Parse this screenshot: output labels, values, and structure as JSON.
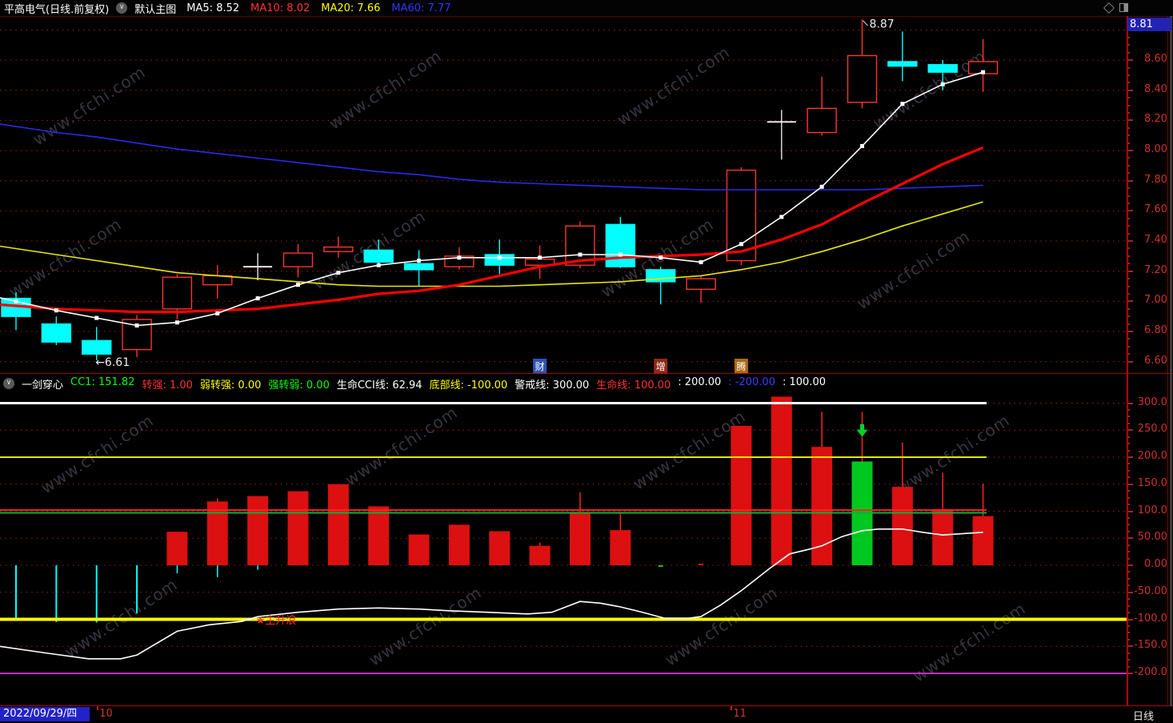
{
  "header": {
    "stock_title": "平高电气(日线.前复权)",
    "chart_style_label": "默认主图",
    "ma_legend": [
      {
        "label": "MA5: 8.52",
        "color": "#ffffff"
      },
      {
        "label": "MA10: 8.02",
        "color": "#ff3232"
      },
      {
        "label": "MA20: 7.66",
        "color": "#ffff00"
      },
      {
        "label": "MA60: 7.77",
        "color": "#3434ff"
      }
    ]
  },
  "price_box": {
    "value": "8.81",
    "bg": "#2222b4"
  },
  "main_axis": {
    "labels": [
      {
        "text": "8.80",
        "p": 8.8
      },
      {
        "text": "8.60",
        "p": 8.6
      },
      {
        "text": "8.40",
        "p": 8.4
      },
      {
        "text": "8.20",
        "p": 8.2
      },
      {
        "text": "8.00",
        "p": 8.0
      },
      {
        "text": "7.80",
        "p": 7.8
      },
      {
        "text": "7.60",
        "p": 7.6
      },
      {
        "text": "7.40",
        "p": 7.4
      },
      {
        "text": "7.20",
        "p": 7.2
      },
      {
        "text": "7.00",
        "p": 7.0
      },
      {
        "text": "6.80",
        "p": 6.8
      },
      {
        "text": "6.60",
        "p": 6.6
      }
    ]
  },
  "sub_axis": {
    "labels": [
      {
        "text": "300.0",
        "v": 300
      },
      {
        "text": "250.0",
        "v": 250
      },
      {
        "text": "200.0",
        "v": 200
      },
      {
        "text": "150.0",
        "v": 150
      },
      {
        "text": "100.0",
        "v": 100
      },
      {
        "text": "50.00",
        "v": 50
      },
      {
        "text": "0.00",
        "v": 0
      },
      {
        "text": "-50.00",
        "v": -50
      },
      {
        "text": "-100.0",
        "v": -100
      },
      {
        "text": "-150.0",
        "v": -150
      },
      {
        "text": "-200.0",
        "v": -200
      }
    ],
    "period_label": "日线"
  },
  "sub_legend": {
    "name": "一剑穿心",
    "items": [
      {
        "text": "CC1: 151.82",
        "color": "#00ff00"
      },
      {
        "text": "转强: 1.00",
        "color": "#ff3232"
      },
      {
        "text": "弱转强: 0.00",
        "color": "#ffff00"
      },
      {
        "text": "强转弱: 0.00",
        "color": "#00ff00"
      },
      {
        "text": "生命CCI线: 62.94",
        "color": "#ffffff"
      },
      {
        "text": "底部线: -100.00",
        "color": "#ffff00"
      },
      {
        "text": "警戒线: 300.00",
        "color": "#ffffff"
      },
      {
        "text": "生命线: 100.00",
        "color": "#ff3232"
      },
      {
        "text": ": 200.00",
        "color": "#ffffff"
      },
      {
        "text": ": -200.00",
        "color": "#3c3cff"
      },
      {
        "text": ": 100.00",
        "color": "#ffffff"
      }
    ]
  },
  "bottom_bar": {
    "date": "2022/09/29/四",
    "months": [
      {
        "text": "10",
        "i": 2.03
      },
      {
        "text": "11",
        "i": 17.76
      }
    ]
  },
  "watermark": {
    "text": "www.cfchi.com"
  },
  "chart_data": {
    "main": {
      "type": "candlestick",
      "title": "平高电气 日线 前复权",
      "price_range": [
        6.55,
        8.95
      ],
      "gridline_prices": [
        8.8,
        8.6,
        8.4,
        8.2,
        8.0,
        7.8,
        7.6,
        7.4,
        7.2,
        7.0,
        6.8,
        6.6
      ],
      "colors": {
        "up": "#ff3232",
        "down": "#00ffff",
        "flat": "#e8e8e8"
      },
      "candles": [
        {
          "o": 7.02,
          "h": 7.06,
          "l": 6.81,
          "c": 6.9,
          "dir": "down"
        },
        {
          "o": 6.85,
          "h": 6.9,
          "l": 6.71,
          "c": 6.73,
          "dir": "down"
        },
        {
          "o": 6.74,
          "h": 6.83,
          "l": 6.61,
          "c": 6.65,
          "dir": "down"
        },
        {
          "o": 6.68,
          "h": 6.91,
          "l": 6.63,
          "c": 6.88,
          "dir": "up"
        },
        {
          "o": 6.95,
          "h": 7.18,
          "l": 6.88,
          "c": 7.16,
          "dir": "up"
        },
        {
          "o": 7.11,
          "h": 7.24,
          "l": 7.02,
          "c": 7.17,
          "dir": "up"
        },
        {
          "o": 7.23,
          "h": 7.32,
          "l": 7.14,
          "c": 7.23,
          "dir": "flat"
        },
        {
          "o": 7.23,
          "h": 7.38,
          "l": 7.16,
          "c": 7.32,
          "dir": "up"
        },
        {
          "o": 7.33,
          "h": 7.43,
          "l": 7.29,
          "c": 7.36,
          "dir": "up"
        },
        {
          "o": 7.34,
          "h": 7.41,
          "l": 7.24,
          "c": 7.26,
          "dir": "down"
        },
        {
          "o": 7.25,
          "h": 7.34,
          "l": 7.1,
          "c": 7.21,
          "dir": "down"
        },
        {
          "o": 7.23,
          "h": 7.36,
          "l": 7.21,
          "c": 7.3,
          "dir": "up"
        },
        {
          "o": 7.31,
          "h": 7.41,
          "l": 7.18,
          "c": 7.24,
          "dir": "down"
        },
        {
          "o": 7.24,
          "h": 7.37,
          "l": 7.15,
          "c": 7.28,
          "dir": "up"
        },
        {
          "o": 7.24,
          "h": 7.53,
          "l": 7.22,
          "c": 7.5,
          "dir": "up"
        },
        {
          "o": 7.51,
          "h": 7.56,
          "l": 7.22,
          "c": 7.23,
          "dir": "down"
        },
        {
          "o": 7.21,
          "h": 7.23,
          "l": 6.98,
          "c": 7.13,
          "dir": "down"
        },
        {
          "o": 7.08,
          "h": 7.17,
          "l": 6.99,
          "c": 7.15,
          "dir": "up"
        },
        {
          "o": 7.27,
          "h": 7.89,
          "l": 7.24,
          "c": 7.87,
          "dir": "up"
        },
        {
          "o": 8.19,
          "h": 8.27,
          "l": 7.94,
          "c": 8.19,
          "dir": "flat"
        },
        {
          "o": 8.12,
          "h": 8.49,
          "l": 8.1,
          "c": 8.28,
          "dir": "up"
        },
        {
          "o": 8.32,
          "h": 8.87,
          "l": 8.28,
          "c": 8.63,
          "dir": "up"
        },
        {
          "o": 8.59,
          "h": 8.79,
          "l": 8.46,
          "c": 8.56,
          "dir": "down"
        },
        {
          "o": 8.57,
          "h": 8.6,
          "l": 8.4,
          "c": 8.52,
          "dir": "down"
        },
        {
          "o": 8.51,
          "h": 8.74,
          "l": 8.39,
          "c": 8.59,
          "dir": "up"
        }
      ],
      "ma_series": [
        {
          "name": "MA60",
          "color": "#2a2af0",
          "width": 1.6,
          "markers": false,
          "values": [
            8.16,
            8.12,
            8.09,
            8.05,
            8.01,
            7.98,
            7.95,
            7.92,
            7.89,
            7.86,
            7.84,
            7.81,
            7.79,
            7.78,
            7.77,
            7.76,
            7.75,
            7.74,
            7.74,
            7.74,
            7.74,
            7.74,
            7.75,
            7.76,
            7.77
          ]
        },
        {
          "name": "MA20",
          "color": "#e8e800",
          "width": 1.6,
          "markers": false,
          "values": [
            7.35,
            7.31,
            7.27,
            7.23,
            7.19,
            7.17,
            7.15,
            7.13,
            7.11,
            7.1,
            7.1,
            7.1,
            7.1,
            7.11,
            7.12,
            7.13,
            7.15,
            7.17,
            7.21,
            7.26,
            7.33,
            7.41,
            7.5,
            7.58,
            7.66
          ]
        },
        {
          "name": "MA10",
          "color": "#ff0000",
          "width": 3.2,
          "markers": false,
          "values": [
            6.97,
            6.95,
            6.94,
            6.93,
            6.93,
            6.94,
            6.95,
            6.98,
            7.01,
            7.05,
            7.07,
            7.11,
            7.17,
            7.23,
            7.27,
            7.29,
            7.3,
            7.31,
            7.33,
            7.41,
            7.51,
            7.65,
            7.78,
            7.91,
            8.02
          ]
        },
        {
          "name": "MA5",
          "color": "#ffffff",
          "width": 1.6,
          "markers": true,
          "values": [
            7.0,
            6.94,
            6.89,
            6.84,
            6.86,
            6.92,
            7.02,
            7.11,
            7.19,
            7.24,
            7.27,
            7.29,
            7.29,
            7.29,
            7.31,
            7.31,
            7.29,
            7.26,
            7.38,
            7.56,
            7.76,
            8.03,
            8.31,
            8.44,
            8.52
          ]
        }
      ],
      "annotations": [
        {
          "text": "8.87",
          "i": 21.18,
          "p": 8.815,
          "leader": [
            [
              21.02,
              8.862
            ],
            [
              21.14,
              8.828
            ]
          ]
        },
        {
          "text": "←6.61",
          "i": 1.97,
          "p": 6.572
        }
      ],
      "tags": [
        {
          "text": "财",
          "bg": "#2d55b4",
          "i": 13
        },
        {
          "text": "增",
          "bg": "#8f2a16",
          "i": 16
        },
        {
          "text": "腾",
          "bg": "#a96a16",
          "i": 18
        }
      ]
    },
    "sub": {
      "type": "histogram+line",
      "title": "一剑穿心 CCI",
      "value_range": [
        -230,
        330
      ],
      "gridline_values": [
        300,
        250,
        200,
        150,
        100,
        50,
        0,
        -50,
        -100,
        -150,
        -200
      ],
      "colors": {
        "red": "#dc1010",
        "green": "#00c81e",
        "cyan": "#00ffff"
      },
      "bars": [
        {
          "v": -102,
          "style": "line"
        },
        {
          "v": -105,
          "style": "line"
        },
        {
          "v": -106,
          "style": "line"
        },
        {
          "v": -89,
          "style": "line"
        },
        {
          "v": 62,
          "lo": -15
        },
        {
          "v": 118,
          "hi": 124,
          "lo": -22
        },
        {
          "v": 128,
          "lo": -8
        },
        {
          "v": 137
        },
        {
          "v": 150
        },
        {
          "v": 109
        },
        {
          "v": 57
        },
        {
          "v": 75
        },
        {
          "v": 63
        },
        {
          "v": 36,
          "hi": 42
        },
        {
          "v": 97,
          "hi": 135
        },
        {
          "v": 65,
          "hi": 97
        },
        {
          "v": -3,
          "style": "tick"
        },
        {
          "v": 3,
          "style": "tick"
        },
        {
          "v": 258
        },
        {
          "v": 312
        },
        {
          "v": 219,
          "hi": 284
        },
        {
          "v": 192,
          "hi": 284,
          "color": "green"
        },
        {
          "v": 145,
          "hi": 227
        },
        {
          "v": 104,
          "hi": 171
        },
        {
          "v": 91,
          "hi": 151
        }
      ],
      "ref_lines": [
        {
          "v": 300,
          "color": "#ffffff",
          "w": 3
        },
        {
          "v": 200,
          "color": "#e8e800",
          "w": 2
        },
        {
          "v": 102,
          "color": "#ff2222",
          "w": 2
        },
        {
          "v": 97,
          "color": "#00b43c",
          "w": 2
        },
        {
          "v": -100,
          "color": "#ffff00",
          "w": 4,
          "full": true
        },
        {
          "v": -200,
          "color": "#c828c8",
          "w": 2,
          "full": true
        }
      ],
      "cci_line": {
        "color": "#ffffff",
        "points": [
          [
            -0.4,
            -150
          ],
          [
            0.8,
            -163
          ],
          [
            1.8,
            -173
          ],
          [
            2.6,
            -173
          ],
          [
            3.0,
            -166
          ],
          [
            4.0,
            -122
          ],
          [
            4.8,
            -110
          ],
          [
            5.6,
            -104
          ],
          [
            6.0,
            -95
          ],
          [
            7.0,
            -87
          ],
          [
            8.0,
            -81
          ],
          [
            9.0,
            -79
          ],
          [
            10.0,
            -81
          ],
          [
            10.7,
            -84
          ],
          [
            11.7,
            -87
          ],
          [
            12.7,
            -90
          ],
          [
            13.3,
            -87
          ],
          [
            14.0,
            -67
          ],
          [
            14.5,
            -70
          ],
          [
            15.0,
            -77
          ],
          [
            15.5,
            -86
          ],
          [
            16.1,
            -98
          ],
          [
            16.7,
            -98
          ],
          [
            17.0,
            -95
          ],
          [
            17.5,
            -73
          ],
          [
            18.0,
            -47
          ],
          [
            18.7,
            -6
          ],
          [
            19.2,
            21
          ],
          [
            19.7,
            30
          ],
          [
            20.0,
            36
          ],
          [
            20.5,
            53
          ],
          [
            21.0,
            64
          ],
          [
            21.4,
            67
          ],
          [
            22.0,
            67
          ],
          [
            22.5,
            61
          ],
          [
            23.0,
            56
          ],
          [
            23.4,
            58
          ],
          [
            24.0,
            61
          ]
        ]
      },
      "annotations": [
        {
          "text": "★主升浪",
          "color": "#ff3434",
          "i": 5.95,
          "v": -101
        }
      ],
      "marker": {
        "shape": "down-arrow",
        "color": "#00d228",
        "i": 21,
        "v": 248
      }
    }
  }
}
